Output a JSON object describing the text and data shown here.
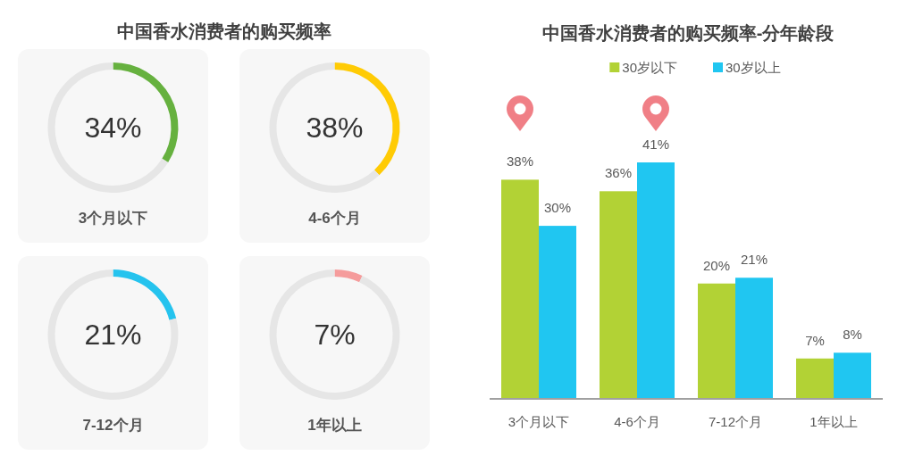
{
  "chart_data": [
    {
      "type": "donut",
      "title": "中国香水消费者的购买频率",
      "xlabel": "3个月以下",
      "categories": [
        null,
        null
      ],
      "values": [
        34,
        66
      ],
      "colors": [
        "#66b13f",
        "#e6e6e6"
      ],
      "annotations": [
        "34%"
      ]
    },
    {
      "type": "donut",
      "xlabel": "4-6个月",
      "categories": [
        null,
        null
      ],
      "values": [
        38,
        62
      ],
      "colors": [
        "#ffcb05",
        "#e6e6e6"
      ],
      "annotations": [
        "38%"
      ]
    },
    {
      "type": "donut",
      "xlabel": "7-12个月",
      "categories": [
        null,
        null
      ],
      "values": [
        21,
        79
      ],
      "colors": [
        "#25c3ee",
        "#e6e6e6"
      ],
      "annotations": [
        "21%"
      ]
    },
    {
      "type": "donut",
      "xlabel": "1年以上",
      "categories": [
        null,
        null
      ],
      "values": [
        7,
        93
      ],
      "colors": [
        "#f59c9c",
        "#e6e6e6"
      ],
      "annotations": [
        "7%"
      ]
    },
    {
      "type": "bar",
      "title": "中国香水消费者的购买频率-分年龄段",
      "categories": [
        "3个月以下",
        "4-6个月",
        "7-12个月",
        "1年以上"
      ],
      "legend": "top",
      "series": [
        {
          "name": "30岁以下",
          "color": "#b2d235",
          "values": [
            38,
            36,
            20,
            7
          ],
          "value_labels": [
            "38%",
            "36%",
            "20%",
            "7%"
          ]
        },
        {
          "name": "30岁以上",
          "color": "#20c6f1",
          "values": [
            30,
            41,
            21,
            8
          ],
          "value_labels": [
            "30%",
            "41%",
            "21%",
            "8%"
          ]
        }
      ]
    }
  ]
}
